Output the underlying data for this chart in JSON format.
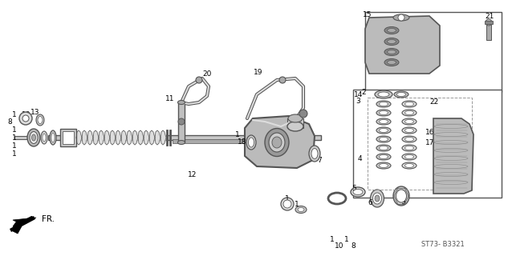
{
  "bg_color": "#ffffff",
  "line_color": "#555555",
  "diagram_ref": "ST73- B3321",
  "fr_label": "FR.",
  "figsize": [
    6.38,
    3.2
  ],
  "dpi": 100
}
